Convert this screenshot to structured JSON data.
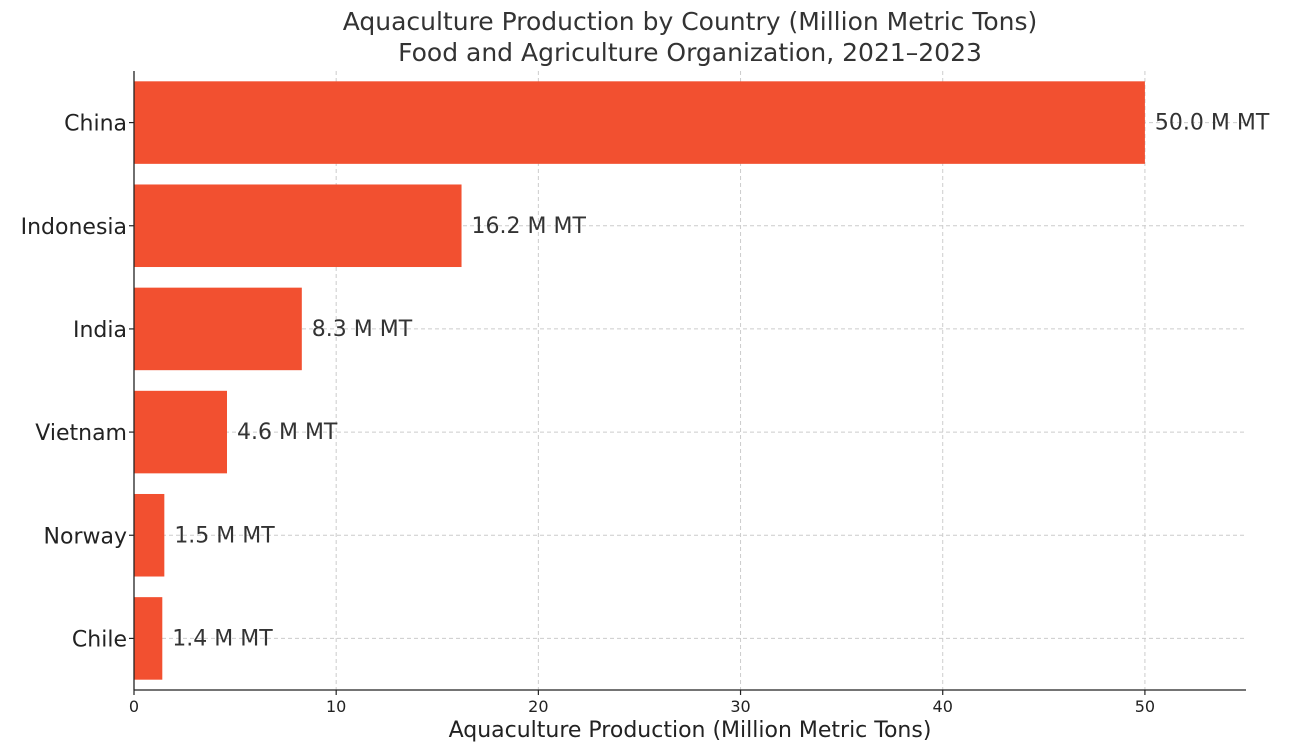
{
  "chart_data": {
    "type": "bar",
    "orientation": "horizontal",
    "title": "Aquaculture Production by Country (Million Metric Tons)",
    "subtitle": "Food and Agriculture Organization, 2021–2023",
    "xlabel": "Aquaculture Production (Million Metric Tons)",
    "ylabel": "",
    "categories": [
      "China",
      "Indonesia",
      "India",
      "Vietnam",
      "Norway",
      "Chile"
    ],
    "values": [
      50.0,
      16.2,
      8.3,
      4.6,
      1.5,
      1.4
    ],
    "data_labels": [
      "50.0 M MT",
      "16.2 M MT",
      "8.3 M MT",
      "4.6 M MT",
      "1.5 M MT",
      "1.4 M MT"
    ],
    "xlim": [
      0,
      55
    ],
    "xticks": [
      0,
      10,
      20,
      30,
      40,
      50
    ],
    "xtick_labels": [
      "0",
      "10",
      "20",
      "30",
      "40",
      "50"
    ],
    "grid": true,
    "bar_color": "#f25030"
  }
}
